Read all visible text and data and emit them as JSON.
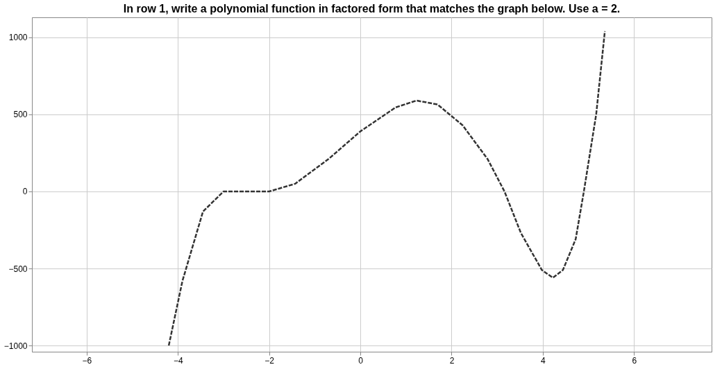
{
  "chart_data": {
    "type": "line",
    "title": "In row 1, write a polynomial function in factored form that matches the graph below. Use a = 2.",
    "series": [
      {
        "color": "#333333",
        "line_style": "dashed",
        "x": [
          -4.2,
          -3.9,
          -3.45,
          -3.0,
          -2.5,
          -2.0,
          -1.43,
          -0.7,
          0,
          0.77,
          1.23,
          1.69,
          2.24,
          2.79,
          3.16,
          3.52,
          3.98,
          4.22,
          4.44,
          4.72,
          4.9,
          5.17,
          5.36
        ],
        "values": [
          -1000,
          -580,
          -130,
          0,
          0,
          0,
          50,
          210,
          390,
          545,
          590,
          565,
          430,
          210,
          0,
          -270,
          -510,
          -560,
          -510,
          -310,
          0,
          500,
          1040
        ]
      }
    ],
    "xlim": [
      -7.2,
      7.7
    ],
    "ylim": [
      -1040,
      1130
    ],
    "xticks": [
      -6,
      -4,
      -2,
      0,
      2,
      4,
      6
    ],
    "yticks": [
      -1000,
      -500,
      0,
      500,
      1000
    ],
    "grid": true,
    "marker": "none"
  }
}
